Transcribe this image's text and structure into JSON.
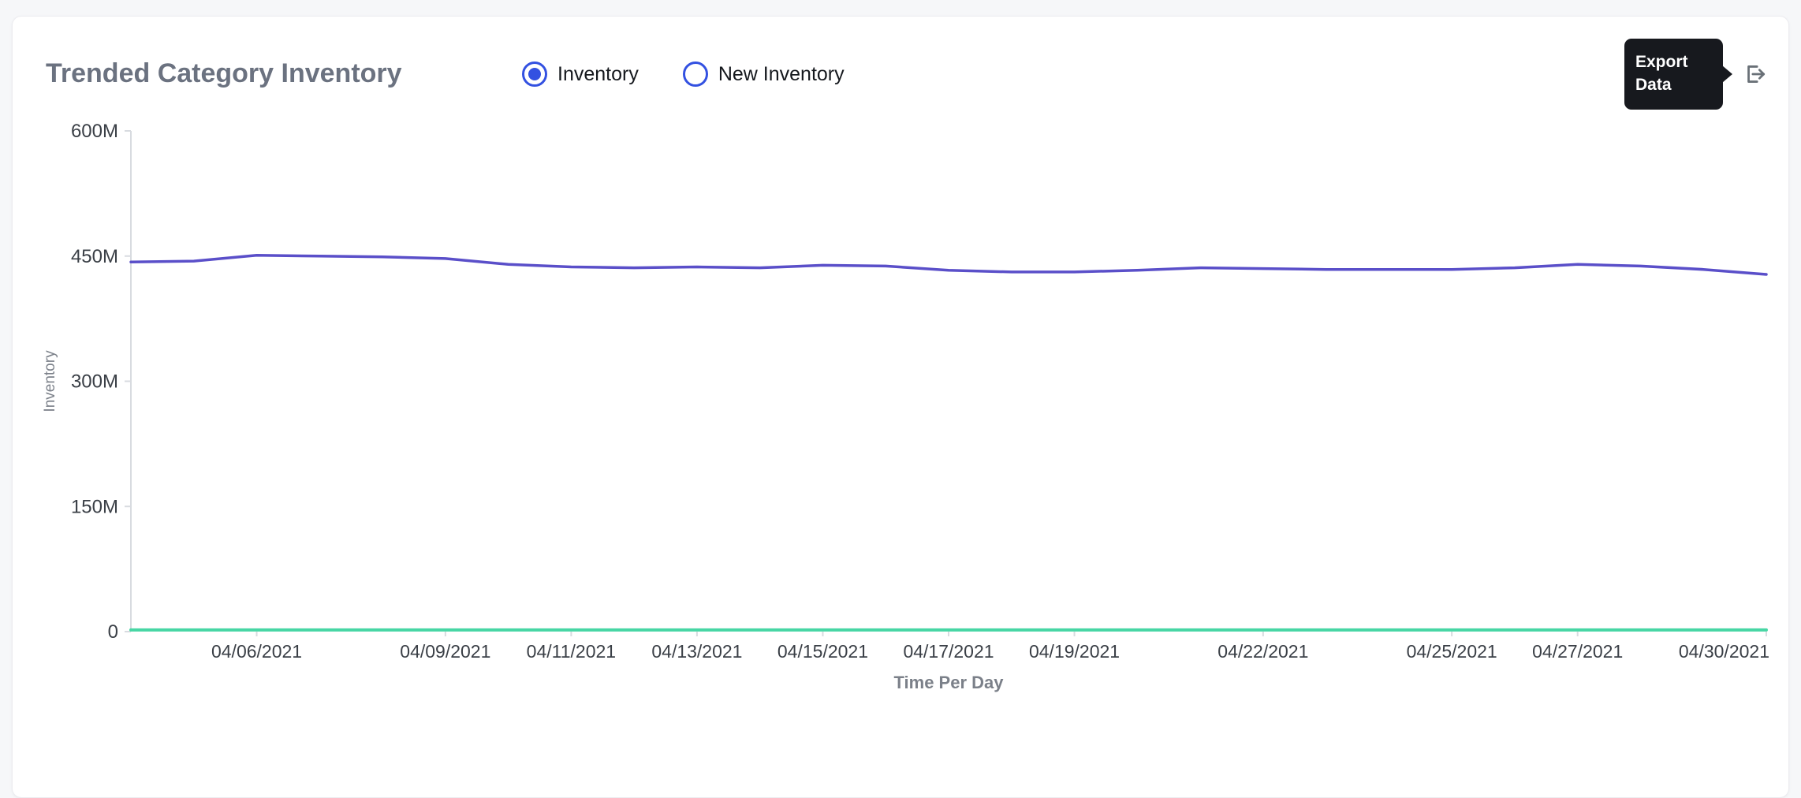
{
  "colors": {
    "accent": "#3351e1",
    "line_inventory": "#5a4fc9",
    "line_new_inventory": "#47d6a4",
    "page_bg": "#f6f7f9",
    "card_bg": "#ffffff",
    "tooltip_bg": "#17191e",
    "title_text": "#6b7280",
    "axis_text": "#3a3f46"
  },
  "header": {
    "title": "Trended Category Inventory",
    "series_toggles": [
      {
        "label": "Inventory",
        "selected": true
      },
      {
        "label": "New Inventory",
        "selected": false
      }
    ],
    "export": {
      "tooltip_label": "Export Data",
      "icon": "export-icon"
    }
  },
  "chart_data": {
    "type": "line",
    "title": "Trended Category Inventory",
    "xlabel": "Time Per Day",
    "ylabel": "Inventory",
    "unit": "M",
    "ylim": [
      0,
      600
    ],
    "grid": false,
    "legend_position": "none",
    "y_ticks": [
      {
        "value": 0,
        "label": "0"
      },
      {
        "value": 150,
        "label": "150M"
      },
      {
        "value": 300,
        "label": "300M"
      },
      {
        "value": 450,
        "label": "450M"
      },
      {
        "value": 600,
        "label": "600M"
      }
    ],
    "x": [
      "04/04/2021",
      "04/05/2021",
      "04/06/2021",
      "04/07/2021",
      "04/08/2021",
      "04/09/2021",
      "04/10/2021",
      "04/11/2021",
      "04/12/2021",
      "04/13/2021",
      "04/14/2021",
      "04/15/2021",
      "04/16/2021",
      "04/17/2021",
      "04/18/2021",
      "04/19/2021",
      "04/20/2021",
      "04/21/2021",
      "04/22/2021",
      "04/23/2021",
      "04/24/2021",
      "04/25/2021",
      "04/26/2021",
      "04/27/2021",
      "04/28/2021",
      "04/29/2021",
      "04/30/2021"
    ],
    "x_ticks": [
      "04/06/2021",
      "04/09/2021",
      "04/11/2021",
      "04/13/2021",
      "04/15/2021",
      "04/17/2021",
      "04/19/2021",
      "04/22/2021",
      "04/25/2021",
      "04/27/2021",
      "04/30/2021"
    ],
    "series": [
      {
        "name": "Inventory",
        "color": "#5a4fc9",
        "width": 3.5,
        "values": [
          443,
          444,
          451,
          450,
          449,
          447,
          440,
          437,
          436,
          437,
          436,
          439,
          438,
          433,
          431,
          431,
          433,
          436,
          435,
          434,
          434,
          434,
          436,
          440,
          438,
          434,
          428
        ]
      },
      {
        "name": "New Inventory",
        "color": "#47d6a4",
        "width": 4,
        "values": [
          2,
          2,
          2,
          2,
          2,
          2,
          2,
          2,
          2,
          2,
          2,
          2,
          2,
          2,
          2,
          2,
          2,
          2,
          2,
          2,
          2,
          2,
          2,
          2,
          2,
          2,
          2
        ]
      }
    ]
  }
}
